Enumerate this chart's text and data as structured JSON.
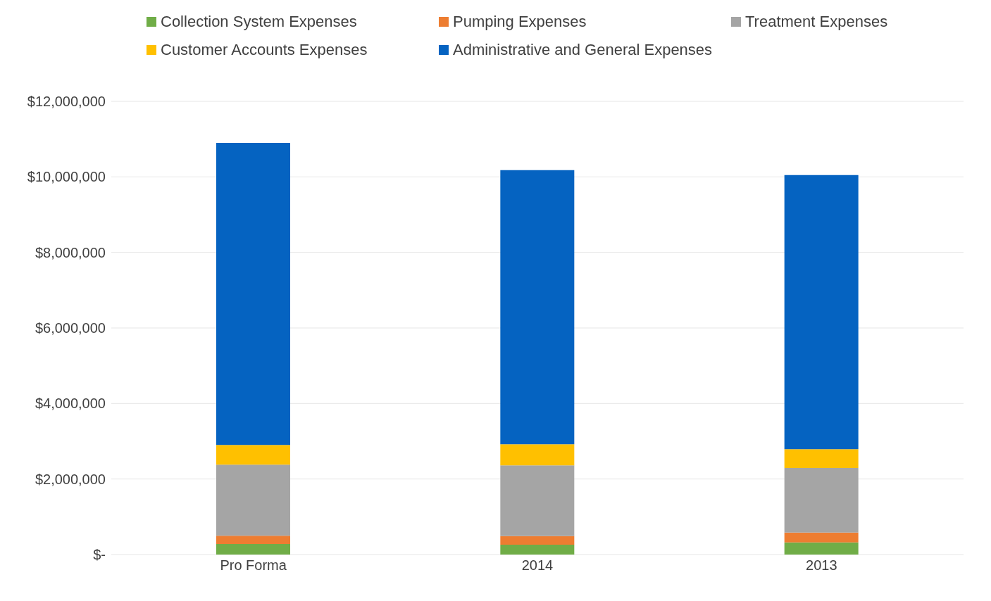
{
  "chart_data": {
    "type": "bar",
    "stacked": true,
    "categories": [
      "Pro Forma",
      "2014",
      "2013"
    ],
    "series": [
      {
        "name": "Collection System Expenses",
        "color": "#70ad47",
        "values": [
          280000,
          260000,
          320000
        ]
      },
      {
        "name": "Pumping Expenses",
        "color": "#ed7d31",
        "values": [
          220000,
          230000,
          260000
        ]
      },
      {
        "name": "Treatment Expenses",
        "color": "#a5a5a5",
        "values": [
          1880000,
          1870000,
          1710000
        ]
      },
      {
        "name": "Customer Accounts Expenses",
        "color": "#ffc000",
        "values": [
          520000,
          560000,
          500000
        ]
      },
      {
        "name": "Administrative and General Expenses",
        "color": "#0563c1",
        "values": [
          8000000,
          7260000,
          7260000
        ]
      }
    ],
    "ylim": [
      0,
      12000000
    ],
    "yticks": [
      {
        "value": 0,
        "label": "$-"
      },
      {
        "value": 2000000,
        "label": "$2,000,000"
      },
      {
        "value": 4000000,
        "label": "$4,000,000"
      },
      {
        "value": 6000000,
        "label": "$6,000,000"
      },
      {
        "value": 8000000,
        "label": "$8,000,000"
      },
      {
        "value": 10000000,
        "label": "$10,000,000"
      },
      {
        "value": 12000000,
        "label": "$12,000,000"
      }
    ],
    "grid": "y",
    "legend": "top"
  }
}
